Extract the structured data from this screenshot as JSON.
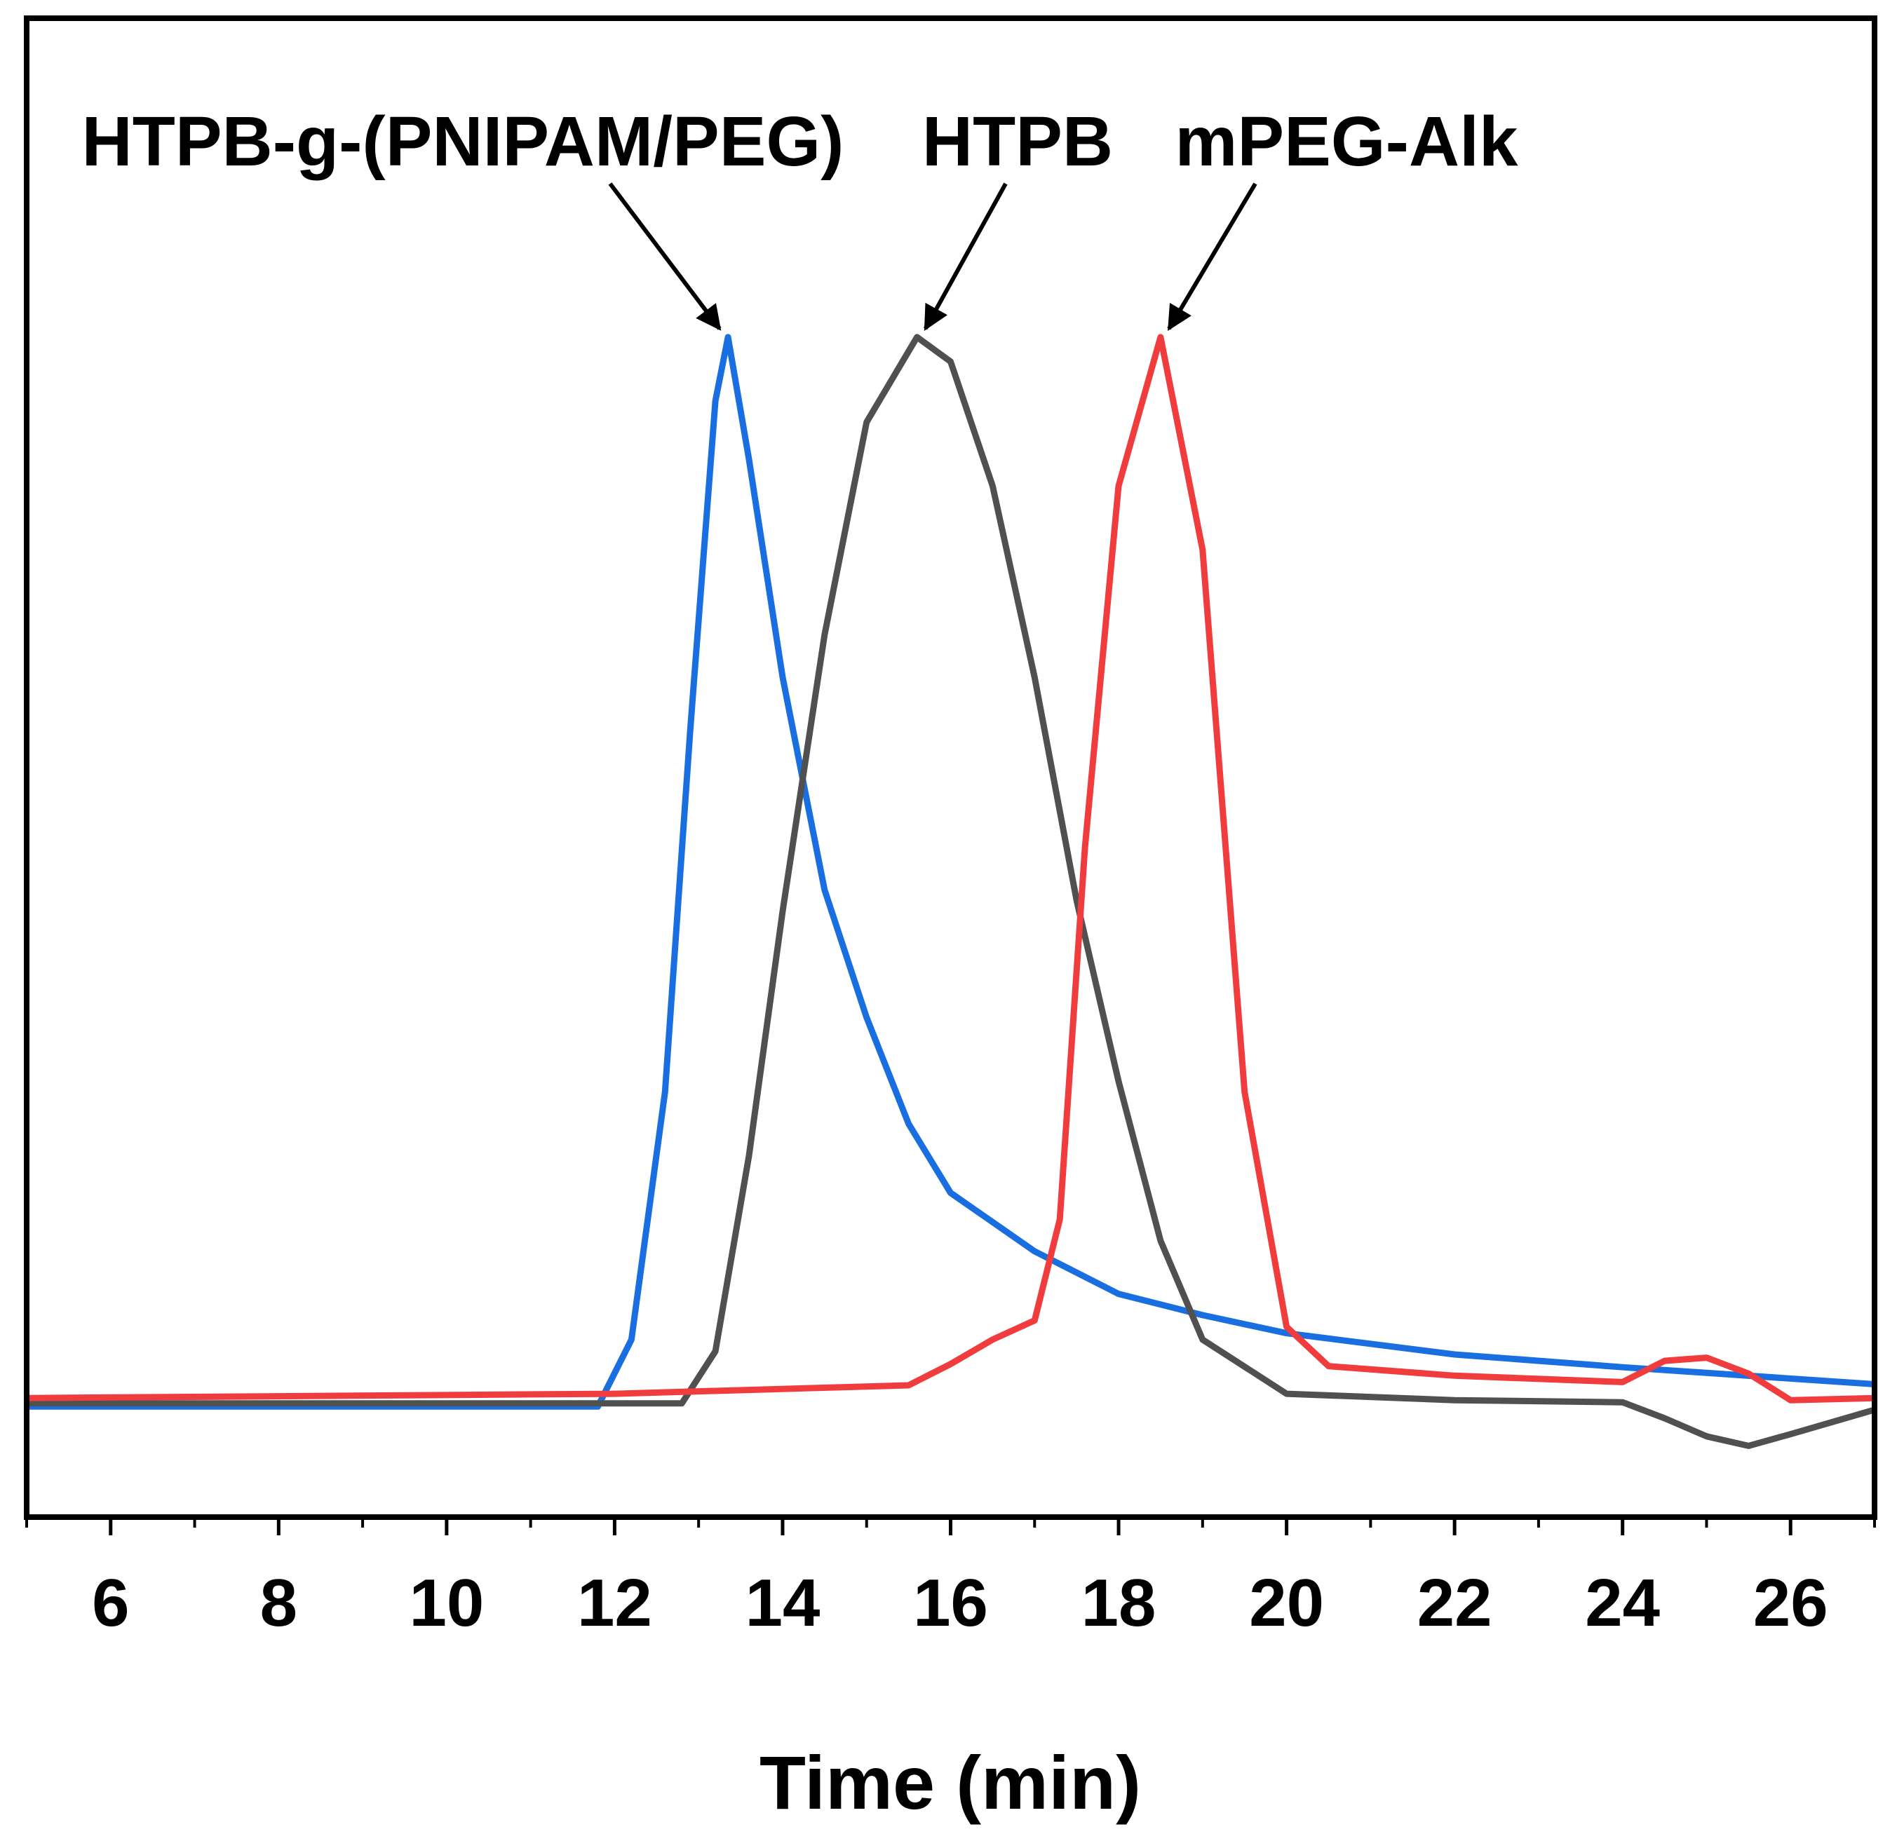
{
  "chart_data": {
    "type": "line",
    "xlabel": "Time (min)",
    "xlim": [
      5,
      27
    ],
    "xticks": [
      6,
      8,
      10,
      12,
      14,
      16,
      18,
      20,
      22,
      24,
      26
    ],
    "ylim": [
      -0.11,
      1.3
    ],
    "series": [
      {
        "name": "HTPB-g-(PNIPAM/PEG)",
        "color": "#1a6fe0",
        "x": [
          5,
          11.8,
          12.2,
          12.6,
          12.9,
          13.2,
          13.35,
          13.6,
          14.0,
          14.5,
          15.0,
          15.5,
          16.0,
          17.0,
          18.0,
          19.0,
          20.0,
          22.0,
          24.0,
          27.0
        ],
        "values": [
          -0.006,
          -0.006,
          0.057,
          0.29,
          0.63,
          0.94,
          1.0,
          0.885,
          0.68,
          0.48,
          0.36,
          0.26,
          0.195,
          0.14,
          0.1,
          0.08,
          0.063,
          0.043,
          0.031,
          0.015
        ]
      },
      {
        "name": "HTPB",
        "color": "#505050",
        "x": [
          5,
          12.8,
          13.2,
          13.6,
          14.0,
          14.5,
          15.0,
          15.6,
          16.0,
          16.5,
          17.0,
          17.5,
          18.0,
          18.5,
          19.0,
          20.0,
          22.0,
          24.0,
          24.5,
          25.0,
          25.5,
          26.0,
          27.0
        ],
        "values": [
          -0.003,
          -0.003,
          0.046,
          0.23,
          0.46,
          0.72,
          0.92,
          1.0,
          0.977,
          0.86,
          0.68,
          0.47,
          0.3,
          0.15,
          0.057,
          0.006,
          0.0,
          -0.002,
          -0.017,
          -0.034,
          -0.043,
          -0.032,
          -0.009
        ]
      },
      {
        "name": "mPEG-Alk",
        "color": "#f03c3c",
        "x": [
          5,
          12.0,
          15.5,
          16.0,
          16.5,
          17.0,
          17.3,
          17.6,
          18.0,
          18.5,
          19.0,
          19.5,
          20.0,
          20.5,
          22.0,
          24.0,
          24.5,
          25.0,
          25.5,
          26.0,
          27.0
        ],
        "values": [
          0.002,
          0.006,
          0.014,
          0.034,
          0.057,
          0.075,
          0.17,
          0.52,
          0.86,
          1.0,
          0.8,
          0.29,
          0.069,
          0.032,
          0.023,
          0.017,
          0.037,
          0.04,
          0.025,
          0.0,
          0.002
        ]
      }
    ]
  }
}
